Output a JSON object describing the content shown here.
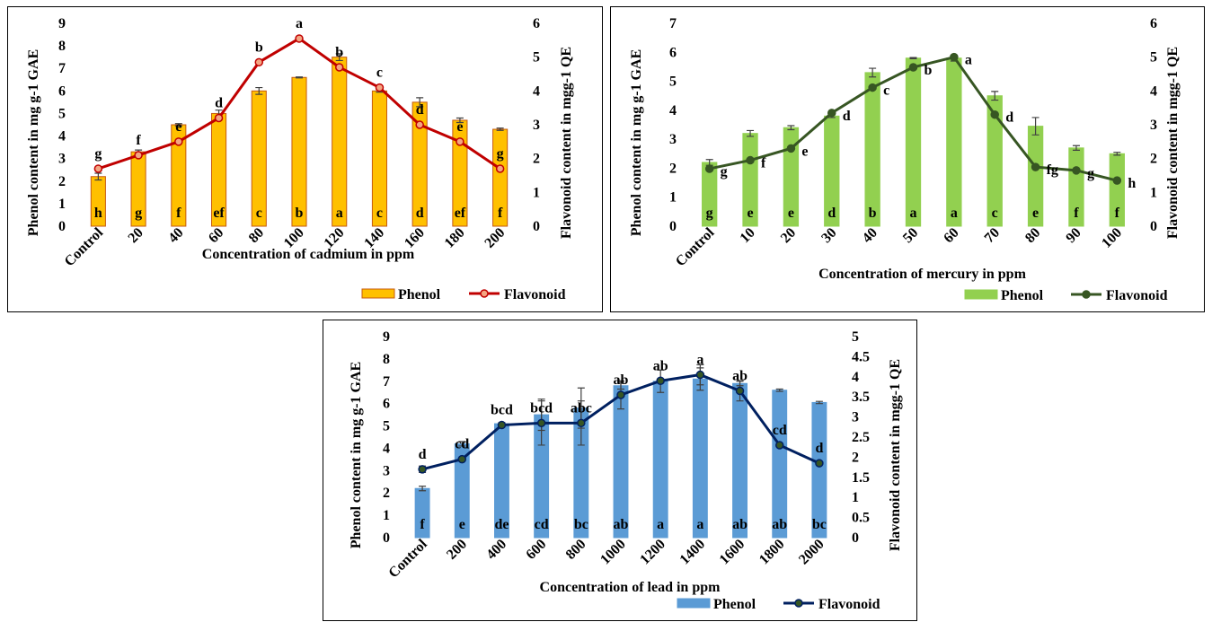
{
  "chart_data": [
    {
      "type": "bar",
      "xlabel": "Concentration of cadmium in ppm",
      "ylabel": "Phenol content in mg g-1 GAE",
      "y2label": "Flavonoid content in mgg-1 QE",
      "categories": [
        "Control",
        "20",
        "40",
        "60",
        "80",
        "100",
        "120",
        "140",
        "160",
        "180",
        "200"
      ],
      "ylim": [
        0,
        9
      ],
      "y2lim": [
        0,
        6
      ],
      "yticks": [
        "0",
        "1",
        "2",
        "3",
        "4",
        "5",
        "6",
        "7",
        "8",
        "9"
      ],
      "y2ticks": [
        "0",
        "1",
        "2",
        "3",
        "4",
        "5",
        "6"
      ],
      "colors": {
        "bar": "#FFC000",
        "bar_edge": "#C55A11",
        "line": "#C00000",
        "marker": "#F4A582"
      },
      "legend": {
        "placement": "bottom-right",
        "bar_name": "Phenol",
        "line_name": "Flavonoid"
      },
      "series": [
        {
          "name": "Phenol",
          "kind": "bar",
          "axis": "left",
          "values": [
            2.2,
            3.3,
            4.5,
            5.0,
            6.0,
            6.6,
            7.5,
            6.0,
            5.5,
            4.7,
            4.3
          ],
          "errors": [
            0.15,
            0.08,
            0.05,
            0.15,
            0.15,
            0.02,
            0.15,
            0.05,
            0.2,
            0.1,
            0.05
          ],
          "labels": [
            "h",
            "g",
            "f",
            "ef",
            "c",
            "b",
            "a",
            "c",
            "d",
            "ef",
            "f"
          ]
        },
        {
          "name": "Flavonoid",
          "kind": "line",
          "axis": "right",
          "values": [
            1.7,
            2.1,
            2.5,
            3.2,
            4.85,
            5.55,
            4.7,
            4.1,
            3.0,
            2.5,
            1.7
          ],
          "labels": [
            "g",
            "f",
            "e",
            "d",
            "b",
            "a",
            "b",
            "c",
            "d",
            "e",
            "g"
          ]
        }
      ]
    },
    {
      "type": "bar",
      "xlabel": "Concentration of mercury in ppm",
      "ylabel": "Phenol content in mg g-1 GAE",
      "y2label": "Flavonoid content in mgg-1 QE",
      "categories": [
        "Control",
        "10",
        "20",
        "30",
        "40",
        "50",
        "60",
        "70",
        "80",
        "90",
        "100"
      ],
      "ylim": [
        0,
        7
      ],
      "y2lim": [
        0,
        6
      ],
      "yticks": [
        "0",
        "1",
        "2",
        "3",
        "4",
        "5",
        "6",
        "7"
      ],
      "y2ticks": [
        "0",
        "1",
        "2",
        "3",
        "4",
        "5",
        "6"
      ],
      "colors": {
        "bar": "#92D050",
        "bar_edge": "#92D050",
        "line": "#375623",
        "marker": "#375623"
      },
      "legend": {
        "placement": "bottom-right",
        "bar_name": "Phenol",
        "line_name": "Flavonoid"
      },
      "series": [
        {
          "name": "Phenol",
          "kind": "bar",
          "axis": "left",
          "values": [
            2.2,
            3.2,
            3.4,
            3.8,
            5.3,
            5.8,
            5.8,
            4.5,
            3.45,
            2.7,
            2.5
          ],
          "errors": [
            0.1,
            0.1,
            0.07,
            0.05,
            0.15,
            0.02,
            0.1,
            0.15,
            0.3,
            0.08,
            0.05
          ],
          "labels": [
            "g",
            "e",
            "e",
            "d",
            "b",
            "a",
            "a",
            "c",
            "e",
            "f",
            "f"
          ]
        },
        {
          "name": "Flavonoid",
          "kind": "line",
          "axis": "right",
          "values": [
            1.7,
            1.95,
            2.3,
            3.35,
            4.1,
            4.7,
            5.0,
            3.3,
            1.75,
            1.65,
            1.35
          ],
          "labels": [
            "g",
            "f",
            "e",
            "d",
            "c",
            "b",
            "a",
            "d",
            "fg",
            "g",
            "h"
          ]
        }
      ]
    },
    {
      "type": "bar",
      "xlabel": "Concentration of lead in ppm",
      "ylabel": "Phenol content in mg g-1 GAE",
      "y2label": "Flavonoid content in mgg-1 QE",
      "categories": [
        "Control",
        "200",
        "400",
        "600",
        "800",
        "1000",
        "1200",
        "1400",
        "1600",
        "1800",
        "2000"
      ],
      "ylim": [
        0,
        9
      ],
      "y2lim": [
        0,
        5
      ],
      "yticks": [
        "0",
        "1",
        "2",
        "3",
        "4",
        "5",
        "6",
        "7",
        "8",
        "9"
      ],
      "y2ticks": [
        "0",
        "0.5",
        "1",
        "1.5",
        "2",
        "2.5",
        "3",
        "3.5",
        "4",
        "4.5",
        "5"
      ],
      "colors": {
        "bar": "#5B9BD5",
        "bar_edge": "#5B9BD5",
        "line": "#002060",
        "marker": "#375623"
      },
      "legend": {
        "placement": "bottom-right",
        "bar_name": "Phenol",
        "line_name": "Flavonoid"
      },
      "series": [
        {
          "name": "Phenol",
          "kind": "bar",
          "axis": "left",
          "values": [
            2.2,
            4.2,
            5.1,
            5.5,
            5.8,
            6.8,
            7.0,
            7.1,
            6.9,
            6.6,
            6.05
          ],
          "errors": [
            0.1,
            0.1,
            0.05,
            0.7,
            0.9,
            0.15,
            0.5,
            0.5,
            0.1,
            0.05,
            0.05
          ],
          "labels": [
            "f",
            "e",
            "de",
            "cd",
            "bc",
            "ab",
            "a",
            "a",
            "ab",
            "ab",
            "bc"
          ]
        },
        {
          "name": "Flavonoid",
          "kind": "line",
          "axis": "right",
          "values": [
            1.7,
            1.95,
            2.8,
            2.85,
            2.85,
            3.55,
            3.9,
            4.05,
            3.65,
            2.3,
            1.85
          ],
          "errors": [
            0.08,
            0,
            0,
            0.55,
            0.55,
            0.35,
            0.05,
            0.25,
            0.25,
            0,
            0
          ],
          "labels": [
            "d",
            "cd",
            "bcd",
            "bcd",
            "abc",
            "ab",
            "ab",
            "a",
            "ab",
            "cd",
            "d"
          ]
        }
      ]
    }
  ]
}
